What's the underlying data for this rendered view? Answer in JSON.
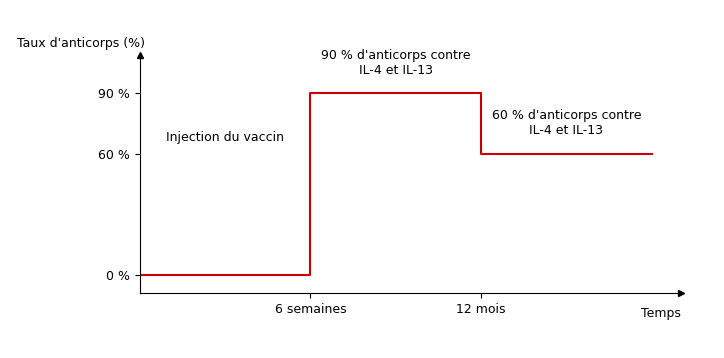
{
  "chart_data": {
    "type": "line",
    "line_style": "steps",
    "color": "#cc0000",
    "x_label": "Temps",
    "y_label": "Taux d'anticorps (%)",
    "categories": [
      null,
      "6 semaines",
      "12 mois",
      null
    ],
    "values": [
      0,
      90,
      60,
      60
    ],
    "ylim": [
      -9,
      109
    ],
    "yticks": [
      {
        "value": 0,
        "label": "0 %"
      },
      {
        "value": 60,
        "label": "60 %"
      },
      {
        "value": 90,
        "label": "90 %"
      }
    ],
    "grid": false,
    "annotations": [
      "Injection du vaccin",
      "90 % d'anticorps contre\nIL-4 et IL-13",
      "60 % d'anticorps contre\nIL-4 et IL-13"
    ]
  }
}
